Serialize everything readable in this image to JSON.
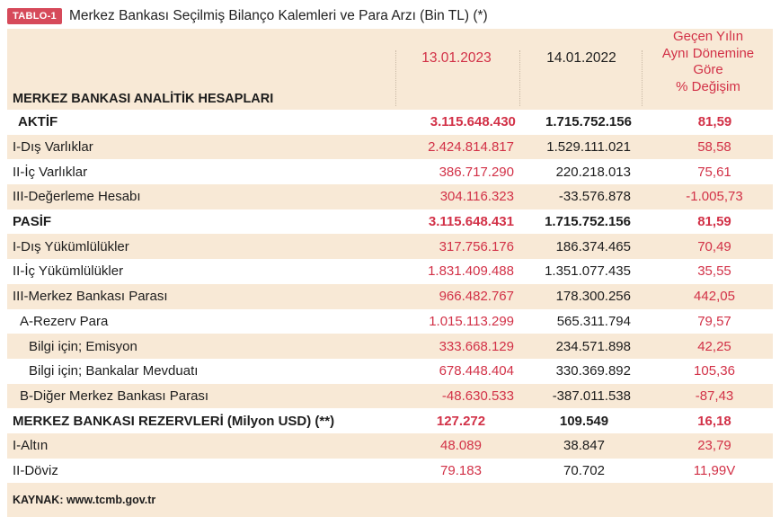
{
  "tag": "TABLO-1",
  "title": "Merkez Bankası Seçilmiş Bilanço Kalemleri ve Para Arzı (Bin TL) (*)",
  "header": {
    "label": "MERKEZ BANKASI ANALİTİK HESAPLARI",
    "col1": "13.01.2023",
    "col2": "14.01.2022",
    "col3": [
      "Geçen Yılın",
      "Aynı Dönemine",
      "Göre",
      "% Değişim"
    ]
  },
  "rows": [
    {
      "label": "AKTİF",
      "v1": "3.115.648.430",
      "v2": "1.715.752.156",
      "v3": "81,59"
    },
    {
      "label": "I-Dış Varlıklar",
      "v1": "2.424.814.817",
      "v2": "1.529.111.021",
      "v3": "58,58"
    },
    {
      "label": "II-İç Varlıklar",
      "v1": "386.717.290",
      "v2": "220.218.013",
      "v3": "75,61"
    },
    {
      "label": "III-Değerleme Hesabı",
      "v1": "304.116.323",
      "v2": "-33.576.878",
      "v3": "-1.005,73"
    },
    {
      "label": "PASİF",
      "v1": "3.115.648.431",
      "v2": "1.715.752.156",
      "v3": "81,59"
    },
    {
      "label": "I-Dış Yükümlülükler",
      "v1": "317.756.176",
      "v2": "186.374.465",
      "v3": "70,49"
    },
    {
      "label": "II-İç Yükümlülükler",
      "v1": "1.831.409.488",
      "v2": "1.351.077.435",
      "v3": "35,55"
    },
    {
      "label": "III-Merkez Bankası Parası",
      "v1": "966.482.767",
      "v2": "178.300.256",
      "v3": "442,05"
    },
    {
      "label": "A-Rezerv Para",
      "v1": "1.015.113.299",
      "v2": "565.311.794",
      "v3": "79,57"
    },
    {
      "label": "Bilgi için; Emisyon",
      "v1": "333.668.129",
      "v2": "234.571.898",
      "v3": "42,25"
    },
    {
      "label": "Bilgi için; Bankalar Mevduatı",
      "v1": "678.448.404",
      "v2": "330.369.892",
      "v3": "105,36"
    },
    {
      "label": "B-Diğer Merkez Bankası Parası",
      "v1": "-48.630.533",
      "v2": "-387.011.538",
      "v3": "-87,43"
    },
    {
      "label": "MERKEZ BANKASI REZERVLERİ (Milyon USD) (**)",
      "v1": "127.272",
      "v2": "109.549",
      "v3": "16,18"
    },
    {
      "label": "I-Altın",
      "v1": "48.089",
      "v2": "38.847",
      "v3": "23,79"
    },
    {
      "label": "II-Döviz",
      "v1": "79.183",
      "v2": "70.702",
      "v3": "11,99V"
    }
  ],
  "source": "KAYNAK: www.tcmb.gov.tr"
}
